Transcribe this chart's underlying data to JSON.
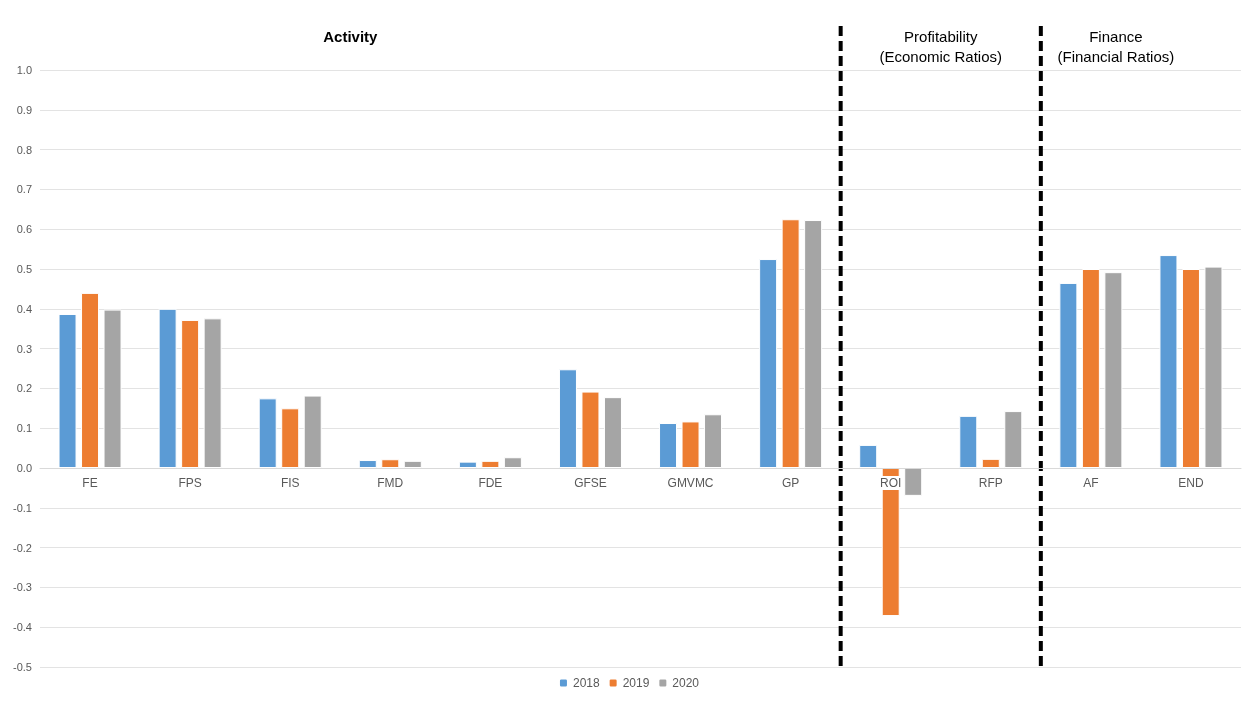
{
  "chart_data": {
    "type": "bar",
    "categories": [
      "FE",
      "FPS",
      "FIS",
      "FMD",
      "FDE",
      "GFSE",
      "GMVMC",
      "GP",
      "ROI",
      "RFP",
      "AF",
      "END"
    ],
    "series": [
      {
        "name": "2018",
        "color": "#5b9bd5",
        "values": [
          0.387,
          0.4,
          0.175,
          0.02,
          0.016,
          0.248,
          0.113,
          0.525,
          0.058,
          0.131,
          0.465,
          0.535
        ]
      },
      {
        "name": "2019",
        "color": "#ed7d31",
        "values": [
          0.44,
          0.372,
          0.15,
          0.022,
          0.018,
          0.192,
          0.117,
          0.625,
          -0.372,
          0.023,
          0.5,
          0.5
        ]
      },
      {
        "name": "2020",
        "color": "#a5a5a5",
        "values": [
          0.398,
          0.376,
          0.182,
          0.018,
          0.027,
          0.178,
          0.135,
          0.623,
          -0.07,
          0.143,
          0.492,
          0.506
        ]
      }
    ],
    "ylim": [
      -0.5,
      1.0
    ],
    "yticks": [
      {
        "value": -0.5,
        "label": "-0.5"
      },
      {
        "value": -0.4,
        "label": "-0.4"
      },
      {
        "value": -0.3,
        "label": "-0.3"
      },
      {
        "value": -0.2,
        "label": "-0.2"
      },
      {
        "value": -0.1,
        "label": "-0.1"
      },
      {
        "value": 0,
        "label": "0.0"
      },
      {
        "value": 0.1,
        "label": "0.1"
      },
      {
        "value": 0.2,
        "label": "0.2"
      },
      {
        "value": 0.3,
        "label": "0.3"
      },
      {
        "value": 0.4,
        "label": "0.4"
      },
      {
        "value": 0.5,
        "label": "0.5"
      },
      {
        "value": 0.6,
        "label": "0.6"
      },
      {
        "value": 0.7,
        "label": "0.7"
      },
      {
        "value": 0.8,
        "label": "0.8"
      },
      {
        "value": 0.9,
        "label": "0.9"
      },
      {
        "value": 1,
        "label": "1.0"
      }
    ],
    "grid": "y",
    "legend": "bottom",
    "annotations": [
      "Activity",
      "Profitability\n(Economic Ratios)",
      "Finance\n(Financial Ratios)"
    ]
  }
}
